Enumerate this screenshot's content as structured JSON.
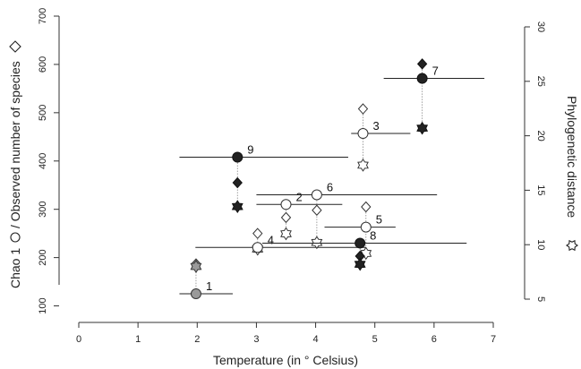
{
  "chart_data": {
    "type": "scatter",
    "xlabel": "Temperature (in ° Celsius)",
    "ylabel_left": "Chao 1",
    "ylabel_left_mid": "/ Observed number of species",
    "ylabel_right": "Phylogenetic distance",
    "x_ticks": [
      "0",
      "1",
      "2",
      "3",
      "4",
      "5",
      "6",
      "7"
    ],
    "y_left_ticks": [
      "100",
      "200",
      "300",
      "400",
      "500",
      "600",
      "700"
    ],
    "y_right_ticks": [
      "5",
      "10",
      "15",
      "20",
      "25",
      "30"
    ],
    "xlim": [
      0,
      7
    ],
    "ylim_left": [
      50,
      700
    ],
    "ylim_right": [
      5,
      30
    ],
    "colors": {
      "dark": "#222222",
      "gray": "#9a9a9a",
      "white": "#ffffff"
    },
    "sites": [
      {
        "label": "1",
        "x": 1.98,
        "x_range": [
          1.7,
          2.6
        ],
        "chao1": 125,
        "observed": 187,
        "phylo": 8.0,
        "fill": "gray"
      },
      {
        "label": "2",
        "x": 3.5,
        "x_range": [
          3.0,
          4.45
        ],
        "chao1": 310,
        "observed": 283,
        "phylo": 11.0,
        "fill": "white"
      },
      {
        "label": "3",
        "x": 4.8,
        "x_range": [
          4.6,
          5.6
        ],
        "chao1": 457,
        "observed": 508,
        "phylo": 17.3,
        "fill": "white"
      },
      {
        "label": "4",
        "x": 3.02,
        "x_range": [
          1.97,
          4.85
        ],
        "chao1": 221,
        "observed": 250,
        "phylo": 9.6,
        "fill": "white"
      },
      {
        "label": "5",
        "x": 4.85,
        "x_range": [
          4.15,
          5.35
        ],
        "chao1": 263,
        "observed": 305,
        "phylo": 9.2,
        "fill": "white"
      },
      {
        "label": "6",
        "x": 4.02,
        "x_range": [
          3.0,
          6.05
        ],
        "chao1": 330,
        "observed": 298,
        "phylo": 10.2,
        "fill": "white"
      },
      {
        "label": "7",
        "x": 5.8,
        "x_range": [
          5.15,
          6.85
        ],
        "chao1": 571,
        "observed": 601,
        "phylo": 20.7,
        "fill": "dark"
      },
      {
        "label": "8",
        "x": 4.75,
        "x_range": [
          3.1,
          6.55
        ],
        "chao1": 230,
        "observed": 203,
        "phylo": 8.2,
        "fill": "dark"
      },
      {
        "label": "9",
        "x": 2.68,
        "x_range": [
          1.7,
          4.55
        ],
        "chao1": 408,
        "observed": 355,
        "phylo": 13.5,
        "fill": "dark"
      }
    ]
  }
}
